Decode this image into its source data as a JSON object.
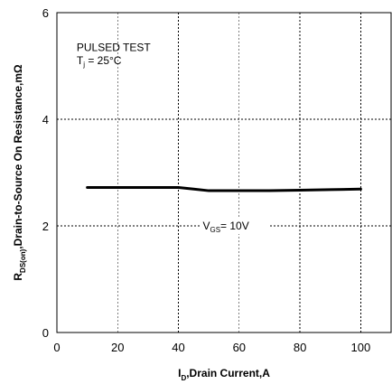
{
  "chart_data": {
    "type": "line",
    "title": "",
    "xlabel": {
      "main": "I",
      "sub": "D",
      "rest": ",Drain  Current,A"
    },
    "ylabel": {
      "main": "R",
      "sub": "DS(on)",
      "rest": ",Drain-to-Source  On Resistance,mΩ"
    },
    "xlim": [
      0,
      110
    ],
    "ylim": [
      0,
      6
    ],
    "xticks": [
      0,
      20,
      40,
      60,
      80,
      100
    ],
    "yticks": [
      0,
      2,
      4,
      6
    ],
    "grid": true,
    "annotations": {
      "test_condition": "PULSED TEST",
      "temperature": {
        "main": "T",
        "sub": "j",
        "rest": " = 25°C"
      },
      "series_label": {
        "main": "V",
        "sub": "GS",
        "rest": "= 10V"
      }
    },
    "series": [
      {
        "name": "VGS = 10V",
        "color": "#000000",
        "x": [
          10,
          20,
          30,
          40,
          45,
          50,
          60,
          70,
          80,
          90,
          100
        ],
        "y": [
          2.72,
          2.72,
          2.72,
          2.72,
          2.69,
          2.66,
          2.66,
          2.66,
          2.67,
          2.68,
          2.69
        ]
      }
    ]
  }
}
